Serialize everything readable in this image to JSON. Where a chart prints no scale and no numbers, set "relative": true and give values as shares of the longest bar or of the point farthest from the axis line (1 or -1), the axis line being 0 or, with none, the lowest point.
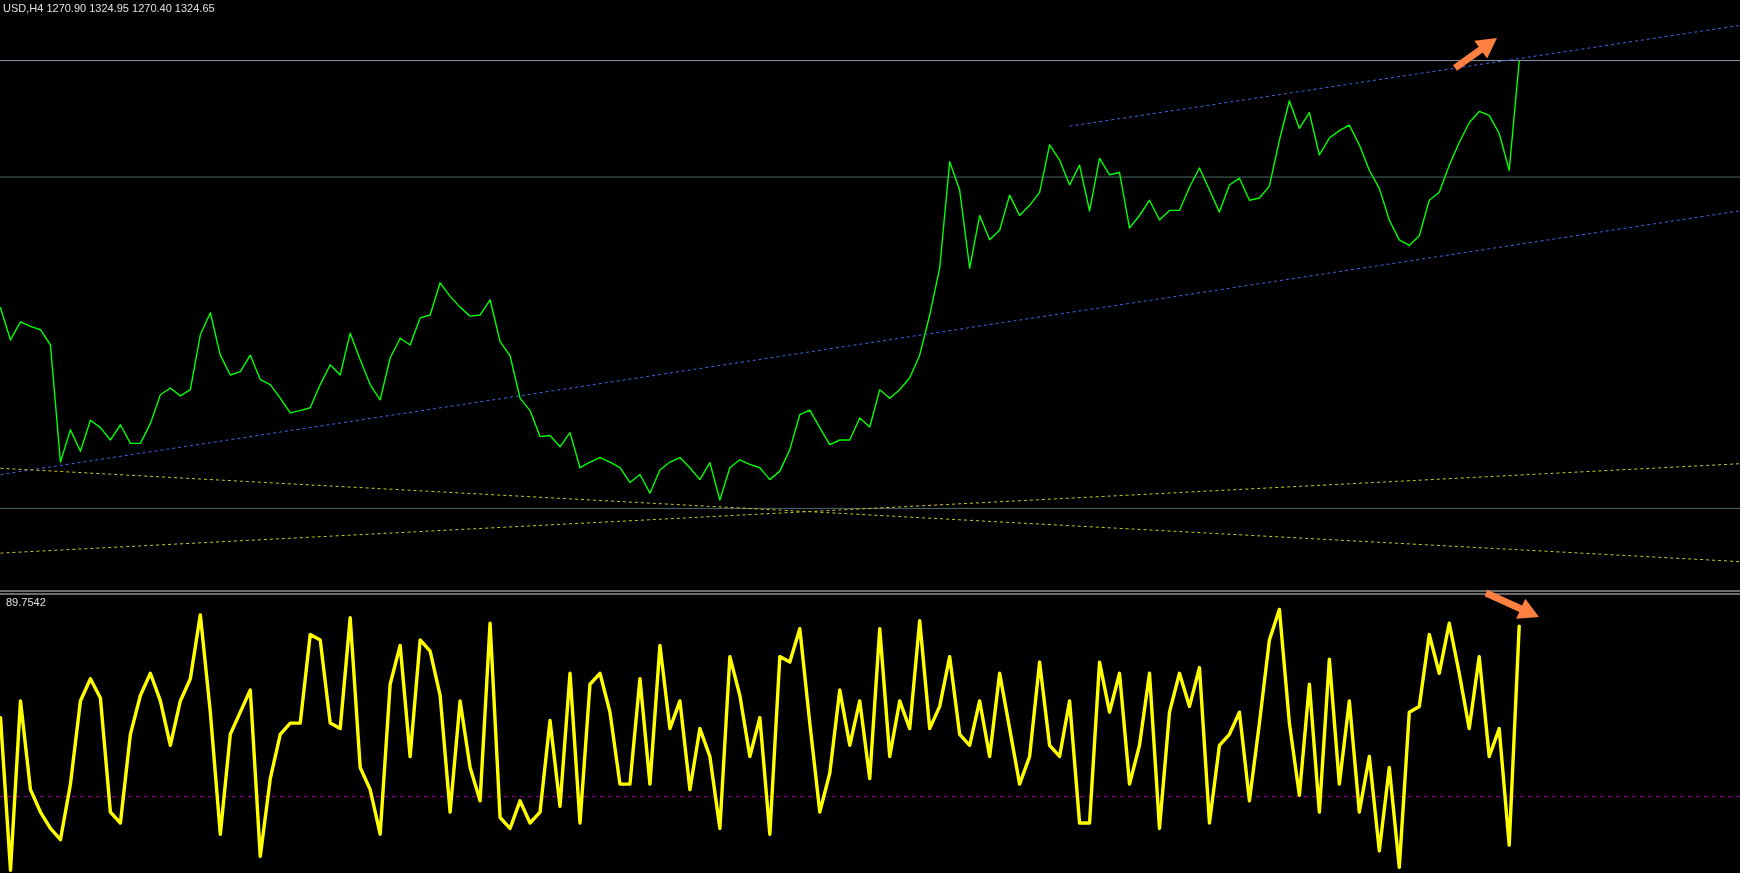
{
  "chart_data": [
    {
      "type": "other",
      "title": "USD,H4  1270.90 1324.95 1270.40 1324.65"
    },
    {
      "type": "line",
      "relative": true,
      "categories": [
        null,
        null,
        null,
        null,
        null,
        null,
        null,
        null,
        null,
        null,
        null,
        null,
        null,
        null,
        null,
        null,
        null,
        null,
        null,
        null,
        null,
        null,
        null,
        null,
        null,
        null,
        null,
        null,
        null,
        null,
        null,
        null,
        null,
        null,
        null,
        null,
        null,
        null,
        null,
        null,
        null,
        null,
        null,
        null,
        null,
        null,
        null,
        null,
        null,
        null,
        null,
        null,
        null,
        null,
        null,
        null,
        null,
        null,
        null,
        null,
        null,
        null,
        null,
        null,
        null,
        null,
        null,
        null,
        null,
        null,
        null,
        null,
        null,
        null,
        null,
        null,
        null,
        null,
        null,
        null,
        null,
        null,
        null,
        null,
        null,
        null,
        null,
        null,
        null,
        null,
        null,
        null,
        null,
        null,
        null,
        null,
        null,
        null,
        null,
        null,
        null,
        null,
        null,
        null,
        null,
        null,
        null,
        null,
        null,
        null,
        null,
        null,
        null,
        null,
        null,
        null,
        null,
        null,
        null,
        null,
        null,
        null,
        null,
        null,
        null,
        null,
        null,
        null,
        null,
        null,
        null,
        null,
        null,
        null,
        null,
        null,
        null,
        null,
        null,
        null,
        null,
        null,
        null,
        null,
        null,
        null,
        null,
        null,
        null,
        null,
        null,
        null,
        null,
        null,
        null,
        null,
        null,
        null,
        null,
        null,
        null,
        null,
        null,
        null,
        null,
        null,
        null,
        null,
        null,
        null,
        null,
        null,
        null,
        null,
        null
      ],
      "series": [
        {
          "color": "#00ff00",
          "values": [
            0.501,
            0.444,
            0.476,
            0.468,
            0.462,
            0.435,
            0.228,
            0.285,
            0.247,
            0.302,
            0.289,
            0.267,
            0.294,
            0.261,
            0.261,
            0.296,
            0.347,
            0.359,
            0.345,
            0.356,
            0.453,
            0.492,
            0.417,
            0.382,
            0.388,
            0.417,
            0.374,
            0.365,
            0.341,
            0.315,
            0.319,
            0.324,
            0.365,
            0.4,
            0.382,
            0.456,
            0.409,
            0.365,
            0.338,
            0.412,
            0.447,
            0.435,
            0.483,
            0.488,
            0.545,
            0.521,
            0.502,
            0.486,
            0.488,
            0.515,
            0.441,
            0.416,
            0.341,
            0.319,
            0.273,
            0.275,
            0.255,
            0.28,
            0.218,
            0.228,
            0.236,
            0.228,
            0.218,
            0.192,
            0.206,
            0.173,
            0.214,
            0.228,
            0.236,
            0.218,
            0.197,
            0.227,
            0.161,
            0.218,
            0.232,
            0.224,
            0.218,
            0.197,
            0.212,
            0.25,
            0.312,
            0.32,
            0.289,
            0.259,
            0.267,
            0.267,
            0.306,
            0.29,
            0.356,
            0.341,
            0.356,
            0.377,
            0.417,
            0.488,
            0.571,
            0.759,
            0.709,
            0.571,
            0.664,
            0.621,
            0.638,
            0.7,
            0.664,
            0.682,
            0.705,
            0.789,
            0.762,
            0.718,
            0.753,
            0.672,
            0.765,
            0.736,
            0.74,
            0.642,
            0.664,
            0.691,
            0.656,
            0.673,
            0.673,
            0.714,
            0.748,
            0.709,
            0.67,
            0.718,
            0.73,
            0.691,
            0.695,
            0.716,
            0.797,
            0.867,
            0.818,
            0.846,
            0.771,
            0.801,
            0.814,
            0.824,
            0.789,
            0.744,
            0.712,
            0.656,
            0.621,
            0.611,
            0.628,
            0.691,
            0.705,
            0.753,
            0.793,
            0.828,
            0.848,
            0.841,
            0.809,
            0.744,
            0.937,
            null,
            null,
            null,
            null,
            null,
            null,
            null,
            null,
            null,
            null,
            null,
            null,
            null,
            null,
            null,
            null,
            null,
            null,
            null,
            null,
            null,
            null
          ]
        },
        {
          "color": "#4464e6",
          "line_style": "dotted",
          "values": [
            0.206,
            null,
            null,
            null,
            null,
            null,
            null,
            null,
            null,
            null,
            null,
            null,
            null,
            null,
            null,
            null,
            null,
            null,
            null,
            null,
            null,
            null,
            null,
            null,
            null,
            null,
            null,
            null,
            null,
            null,
            null,
            null,
            null,
            null,
            null,
            null,
            null,
            null,
            null,
            null,
            null,
            null,
            null,
            null,
            null,
            null,
            null,
            null,
            null,
            null,
            null,
            null,
            null,
            null,
            null,
            null,
            null,
            null,
            null,
            null,
            null,
            null,
            null,
            null,
            null,
            null,
            null,
            null,
            null,
            null,
            null,
            null,
            null,
            null,
            null,
            null,
            null,
            null,
            null,
            null,
            null,
            null,
            null,
            null,
            null,
            null,
            null,
            null,
            null,
            null,
            null,
            null,
            null,
            null,
            null,
            null,
            null,
            null,
            null,
            null,
            null,
            null,
            null,
            null,
            null,
            null,
            null,
            null,
            null,
            null,
            null,
            null,
            null,
            null,
            null,
            null,
            null,
            null,
            null,
            null,
            null,
            null,
            null,
            null,
            null,
            null,
            null,
            null,
            null,
            null,
            null,
            null,
            null,
            null,
            null,
            null,
            null,
            null,
            null,
            null,
            null,
            null,
            null,
            null,
            null,
            null,
            null,
            null,
            null,
            null,
            null,
            null,
            null,
            null,
            null,
            null,
            null,
            null,
            null,
            null,
            null,
            null,
            null,
            null,
            null,
            null,
            null,
            null,
            null,
            null,
            null,
            null,
            null,
            null,
            0.672
          ]
        },
        {
          "color": "#4464e6",
          "line_style": "dotted",
          "values": [
            null,
            null,
            null,
            null,
            null,
            null,
            null,
            null,
            null,
            null,
            null,
            null,
            null,
            null,
            null,
            null,
            null,
            null,
            null,
            null,
            null,
            null,
            null,
            null,
            null,
            null,
            null,
            null,
            null,
            null,
            null,
            null,
            null,
            null,
            null,
            null,
            null,
            null,
            null,
            null,
            null,
            null,
            null,
            null,
            null,
            null,
            null,
            null,
            null,
            null,
            null,
            null,
            null,
            null,
            null,
            null,
            null,
            null,
            null,
            null,
            null,
            null,
            null,
            null,
            null,
            null,
            null,
            null,
            null,
            null,
            null,
            null,
            null,
            null,
            null,
            null,
            null,
            null,
            null,
            null,
            null,
            null,
            null,
            null,
            null,
            null,
            null,
            null,
            null,
            null,
            null,
            null,
            null,
            null,
            null,
            null,
            null,
            null,
            null,
            null,
            null,
            null,
            null,
            null,
            null,
            null,
            null,
            0.822,
            null,
            null,
            null,
            null,
            null,
            null,
            null,
            null,
            null,
            null,
            null,
            null,
            null,
            null,
            null,
            null,
            null,
            null,
            null,
            null,
            null,
            null,
            null,
            null,
            null,
            null,
            null,
            null,
            null,
            null,
            null,
            null,
            null,
            null,
            null,
            null,
            null,
            null,
            null,
            null,
            null,
            null,
            null,
            null,
            null,
            null,
            null,
            null,
            null,
            null,
            null,
            null,
            null,
            null,
            null,
            null,
            null,
            null,
            null,
            null,
            null,
            null,
            null,
            null,
            null,
            null,
            1
          ]
        },
        {
          "color": "#c8c828",
          "line_style": "dotted",
          "values": [
            0.217,
            null,
            null,
            null,
            null,
            null,
            null,
            null,
            null,
            null,
            null,
            null,
            null,
            null,
            null,
            null,
            null,
            null,
            null,
            null,
            null,
            null,
            null,
            null,
            null,
            null,
            null,
            null,
            null,
            null,
            null,
            null,
            null,
            null,
            null,
            null,
            null,
            null,
            null,
            null,
            null,
            null,
            null,
            null,
            null,
            null,
            null,
            null,
            null,
            null,
            null,
            null,
            null,
            null,
            null,
            null,
            null,
            null,
            null,
            null,
            null,
            null,
            null,
            null,
            null,
            null,
            null,
            null,
            null,
            null,
            null,
            null,
            null,
            null,
            null,
            null,
            null,
            null,
            null,
            null,
            null,
            null,
            null,
            null,
            null,
            null,
            null,
            null,
            null,
            null,
            null,
            null,
            null,
            null,
            null,
            null,
            null,
            null,
            null,
            null,
            null,
            null,
            null,
            null,
            null,
            null,
            null,
            null,
            null,
            null,
            null,
            null,
            null,
            null,
            null,
            null,
            null,
            null,
            null,
            null,
            null,
            null,
            null,
            null,
            null,
            null,
            null,
            null,
            null,
            null,
            null,
            null,
            null,
            null,
            null,
            null,
            null,
            null,
            null,
            null,
            null,
            null,
            null,
            null,
            null,
            null,
            null,
            null,
            null,
            null,
            null,
            null,
            null,
            null,
            null,
            null,
            null,
            null,
            null,
            null,
            null,
            null,
            null,
            null,
            null,
            null,
            null,
            null,
            null,
            null,
            null,
            null,
            null,
            null,
            0.052
          ]
        },
        {
          "color": "#c8c828",
          "line_style": "dotted",
          "values": [
            0.067,
            null,
            null,
            null,
            null,
            null,
            null,
            null,
            null,
            null,
            null,
            null,
            null,
            null,
            null,
            null,
            null,
            null,
            null,
            null,
            null,
            null,
            null,
            null,
            null,
            null,
            null,
            null,
            null,
            null,
            null,
            null,
            null,
            null,
            null,
            null,
            null,
            null,
            null,
            null,
            null,
            null,
            null,
            null,
            null,
            null,
            null,
            null,
            null,
            null,
            null,
            null,
            null,
            null,
            null,
            null,
            null,
            null,
            null,
            null,
            null,
            null,
            null,
            null,
            null,
            null,
            null,
            null,
            null,
            null,
            null,
            null,
            null,
            null,
            null,
            null,
            null,
            null,
            null,
            null,
            null,
            null,
            null,
            null,
            null,
            null,
            null,
            null,
            null,
            null,
            null,
            null,
            null,
            null,
            null,
            null,
            null,
            null,
            null,
            null,
            null,
            null,
            null,
            null,
            null,
            null,
            null,
            null,
            null,
            null,
            null,
            null,
            null,
            null,
            null,
            null,
            null,
            null,
            null,
            null,
            null,
            null,
            null,
            null,
            null,
            null,
            null,
            null,
            null,
            null,
            null,
            null,
            null,
            null,
            null,
            null,
            null,
            null,
            null,
            null,
            null,
            null,
            null,
            null,
            null,
            null,
            null,
            null,
            null,
            null,
            null,
            null,
            null,
            null,
            null,
            null,
            null,
            null,
            null,
            null,
            null,
            null,
            null,
            null,
            null,
            null,
            null,
            null,
            null,
            null,
            null,
            null,
            null,
            null,
            0.225
          ]
        }
      ],
      "ref_lines": [
        {
          "axis": "y",
          "value": 0.938,
          "color": "#8a96a8"
        },
        {
          "axis": "y",
          "value": 0.732,
          "color": "#4a6868"
        },
        {
          "axis": "y",
          "value": 0.146,
          "color": "#4a6868"
        }
      ]
    },
    {
      "type": "line",
      "title": "89.7542",
      "relative": true,
      "categories": [
        null,
        null,
        null,
        null,
        null,
        null,
        null,
        null,
        null,
        null,
        null,
        null,
        null,
        null,
        null,
        null,
        null,
        null,
        null,
        null,
        null,
        null,
        null,
        null,
        null,
        null,
        null,
        null,
        null,
        null,
        null,
        null,
        null,
        null,
        null,
        null,
        null,
        null,
        null,
        null,
        null,
        null,
        null,
        null,
        null,
        null,
        null,
        null,
        null,
        null,
        null,
        null,
        null,
        null,
        null,
        null,
        null,
        null,
        null,
        null,
        null,
        null,
        null,
        null,
        null,
        null,
        null,
        null,
        null,
        null,
        null,
        null,
        null,
        null,
        null,
        null,
        null,
        null,
        null,
        null,
        null,
        null,
        null,
        null,
        null,
        null,
        null,
        null,
        null,
        null,
        null,
        null,
        null,
        null,
        null,
        null,
        null,
        null,
        null,
        null,
        null,
        null,
        null,
        null,
        null,
        null,
        null,
        null,
        null,
        null,
        null,
        null,
        null,
        null,
        null,
        null,
        null,
        null,
        null,
        null,
        null,
        null,
        null,
        null,
        null,
        null,
        null,
        null,
        null,
        null,
        null,
        null,
        null,
        null,
        null,
        null,
        null,
        null,
        null,
        null,
        null,
        null,
        null,
        null,
        null,
        null,
        null,
        null,
        null,
        null,
        null,
        null,
        null,
        null,
        null,
        null,
        null,
        null,
        null,
        null,
        null,
        null,
        null,
        null,
        null,
        null,
        null,
        null,
        null,
        null,
        null,
        null,
        null,
        null,
        null
      ],
      "series": [
        {
          "color": "#ffff00",
          "values": [
            0.585,
            0,
            0.649,
            0.309,
            0.223,
            0.16,
            0.117,
            0.33,
            0.649,
            0.734,
            0.66,
            0.223,
            0.181,
            0.521,
            0.67,
            0.755,
            0.649,
            0.479,
            0.649,
            0.734,
            0.979,
            0.606,
            0.138,
            0.521,
            0.606,
            0.691,
            0.053,
            0.351,
            0.521,
            0.564,
            0.564,
            0.904,
            0.883,
            0.564,
            0.543,
            0.968,
            0.394,
            0.309,
            0.138,
            0.713,
            0.862,
            0.436,
            0.883,
            0.84,
            0.67,
            0.223,
            0.649,
            0.394,
            0.266,
            0.947,
            0.202,
            0.16,
            0.266,
            0.181,
            0.223,
            0.574,
            0.245,
            0.755,
            0.181,
            0.713,
            0.755,
            0.606,
            0.33,
            0.33,
            0.734,
            0.33,
            0.862,
            0.543,
            0.649,
            0.309,
            0.543,
            0.436,
            0.16,
            0.819,
            0.67,
            0.436,
            0.585,
            0.138,
            0.819,
            0.798,
            0.926,
            0.564,
            0.223,
            0.372,
            0.691,
            0.479,
            0.649,
            0.351,
            0.926,
            0.436,
            0.649,
            0.543,
            0.957,
            0.543,
            0.628,
            0.819,
            0.521,
            0.479,
            0.649,
            0.436,
            0.755,
            0.543,
            0.33,
            0.436,
            0.798,
            0.479,
            0.436,
            0.649,
            0.181,
            0.181,
            0.798,
            0.606,
            0.755,
            0.33,
            0.479,
            0.755,
            0.16,
            0.606,
            0.755,
            0.628,
            0.777,
            0.181,
            0.479,
            0.521,
            0.606,
            0.266,
            0.564,
            0.883,
            1,
            0.564,
            0.287,
            0.713,
            0.223,
            0.809,
            0.33,
            0.649,
            0.223,
            0.436,
            0.074,
            0.394,
            0.011,
            0.606,
            0.628,
            0.904,
            0.755,
            0.947,
            0.755,
            0.543,
            0.819,
            0.436,
            0.543,
            0.096,
            0.936,
            null,
            null,
            null,
            null,
            null,
            null,
            null,
            null,
            null,
            null,
            null,
            null,
            null,
            null,
            null,
            null,
            null,
            null,
            null,
            null,
            null,
            null
          ]
        }
      ],
      "ref_lines": [
        {
          "axis": "y",
          "value": 0.282,
          "color": "#990099",
          "line_style": "dashed"
        }
      ]
    }
  ]
}
